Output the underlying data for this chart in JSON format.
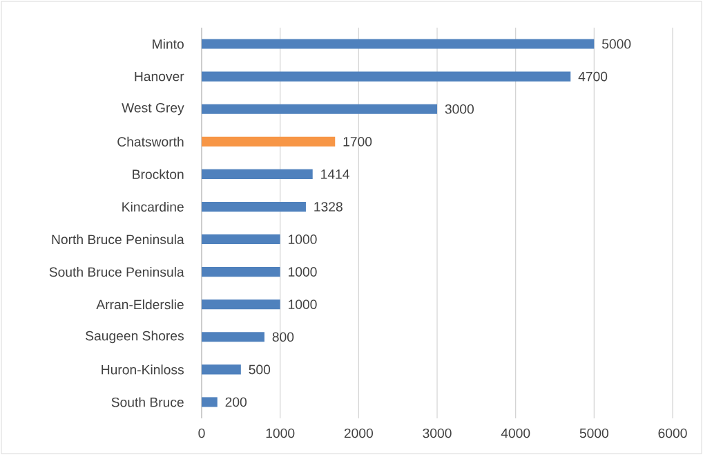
{
  "chart_data": {
    "type": "bar",
    "orientation": "horizontal",
    "categories": [
      "Minto",
      "Hanover",
      "West Grey",
      "Chatsworth",
      "Brockton",
      "Kincardine",
      "North Bruce Peninsula",
      "South Bruce Peninsula",
      "Arran-Elderslie",
      "Saugeen Shores",
      "Huron-Kinloss",
      "South Bruce"
    ],
    "values": [
      5000,
      4700,
      3000,
      1700,
      1414,
      1328,
      1000,
      1000,
      1000,
      800,
      500,
      200
    ],
    "colors": [
      "#4f81bd",
      "#4f81bd",
      "#4f81bd",
      "#f79646",
      "#4f81bd",
      "#4f81bd",
      "#4f81bd",
      "#4f81bd",
      "#4f81bd",
      "#4f81bd",
      "#4f81bd",
      "#4f81bd"
    ],
    "xlim": [
      0,
      6000
    ],
    "xticks": [
      0,
      1000,
      2000,
      3000,
      4000,
      5000,
      6000
    ],
    "grid": "x",
    "data_labels": true
  }
}
